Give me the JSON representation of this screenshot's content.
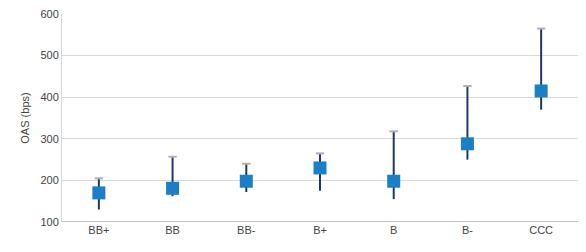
{
  "chart_data": {
    "type": "scatter",
    "marker": "square",
    "y_label": "OAS (bps)",
    "categories": [
      "BB+",
      "BB",
      "BB-",
      "B+",
      "B",
      "B-",
      "CCC"
    ],
    "values": [
      170,
      181,
      198,
      230,
      198,
      288,
      415
    ],
    "low": [
      130,
      162,
      172,
      175,
      155,
      250,
      370
    ],
    "high": [
      205,
      257,
      240,
      265,
      318,
      427,
      565
    ],
    "color": "#1a7fc4",
    "ylim": [
      100,
      600
    ],
    "yticks": [
      100,
      200,
      300,
      400,
      500,
      600
    ],
    "grid": true
  }
}
